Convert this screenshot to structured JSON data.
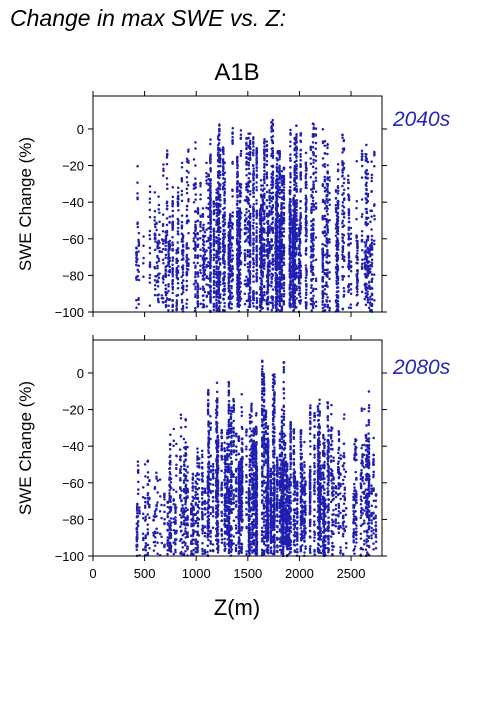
{
  "figure": {
    "title": "Change in max SWE vs. Z:",
    "scenario": "A1B",
    "point_color": "#1f1fb0",
    "period_label_color": "#2626b8"
  },
  "chart_data": [
    {
      "type": "scatter",
      "period": "2040s",
      "ylabel": "SWE Change (%)",
      "xlabel": "",
      "xlim": [
        0,
        2800
      ],
      "ylim": [
        -100,
        18
      ],
      "xticks": [
        0,
        500,
        1000,
        1500,
        2000,
        2500
      ],
      "yticks": [
        0,
        -20,
        -40,
        -60,
        -80,
        -100
      ],
      "ytick_labels": [
        "0",
        "−20",
        "−40",
        "−60",
        "−80",
        "−100"
      ],
      "grid": false,
      "series": [
        {
          "color": "#1f1fb0",
          "point_groups": [
            {
              "x_range": [
                420,
                700
              ],
              "y_range": [
                -100,
                -15
              ],
              "approx_points": 180
            },
            {
              "x_range": [
                700,
                1100
              ],
              "y_range": [
                -100,
                -5
              ],
              "approx_points": 600
            },
            {
              "x_range": [
                1100,
                1550
              ],
              "y_range": [
                -100,
                5
              ],
              "approx_points": 1500
            },
            {
              "x_range": [
                1550,
                1950
              ],
              "y_range": [
                -100,
                9
              ],
              "approx_points": 2000
            },
            {
              "x_range": [
                1950,
                2300
              ],
              "y_range": [
                -100,
                5
              ],
              "approx_points": 900
            },
            {
              "x_range": [
                2300,
                2750
              ],
              "y_range": [
                -100,
                6
              ],
              "approx_points": 600
            }
          ]
        }
      ]
    },
    {
      "type": "scatter",
      "period": "2080s",
      "ylabel": "SWE Change (%)",
      "xlabel": "Z(m)",
      "xlim": [
        0,
        2800
      ],
      "ylim": [
        -100,
        18
      ],
      "xticks": [
        0,
        500,
        1000,
        1500,
        2000,
        2500
      ],
      "xtick_labels": [
        "0",
        "500",
        "1000",
        "1500",
        "2000",
        "2500"
      ],
      "yticks": [
        0,
        -20,
        -40,
        -60,
        -80,
        -100
      ],
      "ytick_labels": [
        "0",
        "−20",
        "−40",
        "−60",
        "−80",
        "−100"
      ],
      "grid": false,
      "series": [
        {
          "color": "#1f1fb0",
          "point_groups": [
            {
              "x_range": [
                420,
                700
              ],
              "y_range": [
                -100,
                -45
              ],
              "approx_points": 180
            },
            {
              "x_range": [
                700,
                1100
              ],
              "y_range": [
                -100,
                -20
              ],
              "approx_points": 600
            },
            {
              "x_range": [
                1100,
                1550
              ],
              "y_range": [
                -100,
                -3
              ],
              "approx_points": 1500
            },
            {
              "x_range": [
                1550,
                1950
              ],
              "y_range": [
                -100,
                8
              ],
              "approx_points": 2000
            },
            {
              "x_range": [
                1950,
                2300
              ],
              "y_range": [
                -100,
                -10
              ],
              "approx_points": 900
            },
            {
              "x_range": [
                2300,
                2750
              ],
              "y_range": [
                -100,
                -8
              ],
              "approx_points": 600
            }
          ]
        }
      ]
    }
  ]
}
